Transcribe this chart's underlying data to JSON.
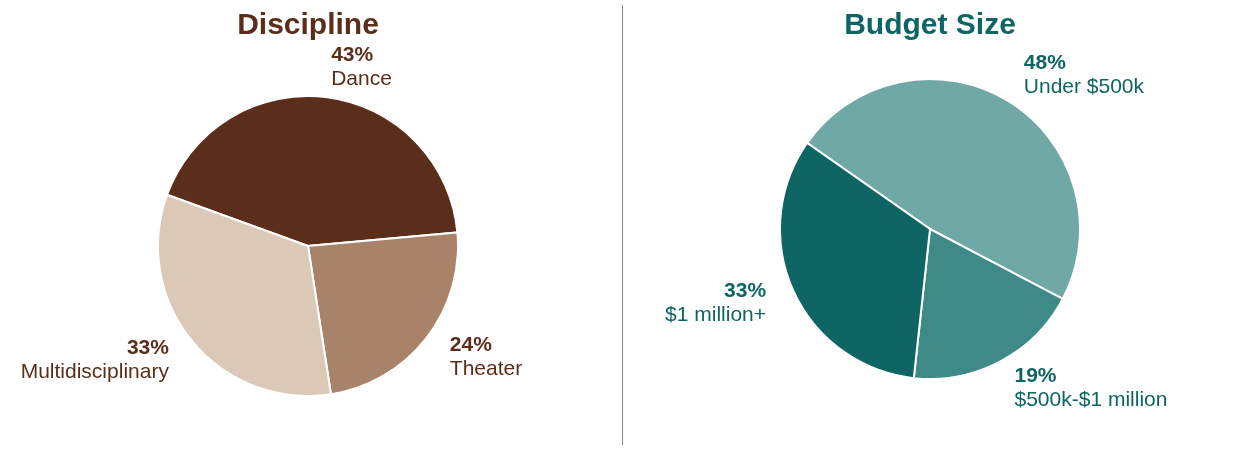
{
  "chart_data": [
    {
      "type": "pie",
      "title": "Discipline",
      "categories": [
        "Dance",
        "Theater",
        "Multidisciplinary"
      ],
      "values": [
        43,
        24,
        33
      ],
      "value_labels": [
        "43%",
        "24%",
        "33%"
      ],
      "colors": [
        "#5a2e1a",
        "#a9826a",
        "#dcc8b6"
      ],
      "legend": false
    },
    {
      "type": "pie",
      "title": "Budget Size",
      "categories": [
        "Under $500k",
        "$500k-$1 million",
        "$1 million+"
      ],
      "values": [
        48,
        19,
        33
      ],
      "value_labels": [
        "48%",
        "19%",
        "33%"
      ],
      "colors": [
        "#6fa8a5",
        "#3d8a87",
        "#0e6563"
      ],
      "legend": false
    }
  ]
}
